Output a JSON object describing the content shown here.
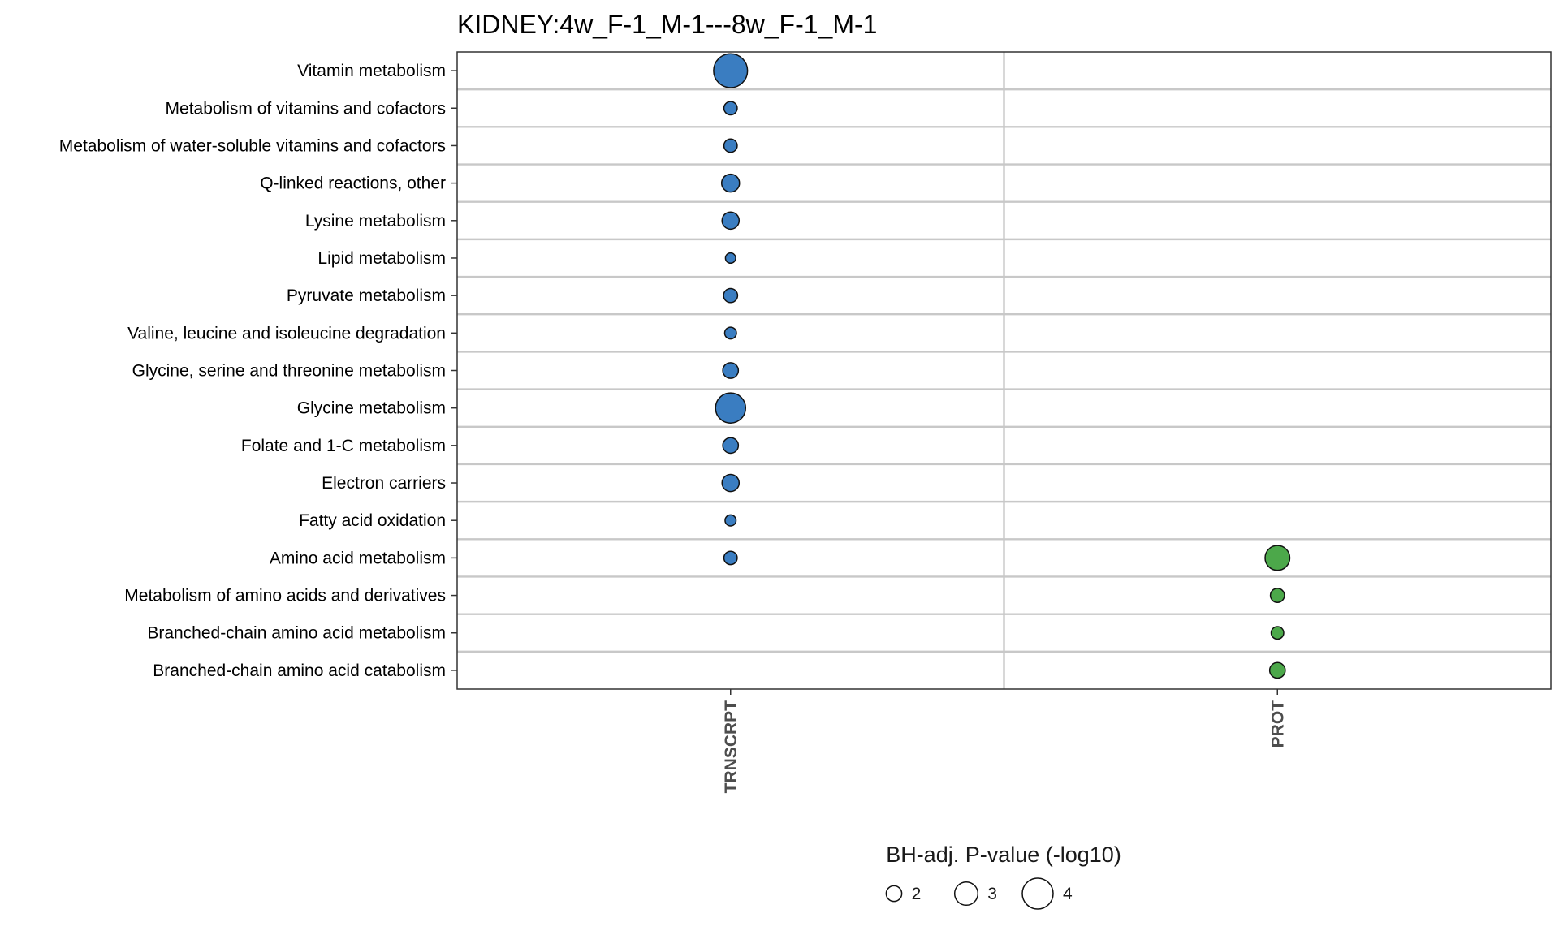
{
  "chart_data": {
    "type": "scatter",
    "title": "KIDNEY:4w_F-1_M-1---8w_F-1_M-1",
    "xlabel": "",
    "ylabel": "",
    "x_categories": [
      "TRNSCRPT",
      "PROT"
    ],
    "y_categories": [
      "Vitamin metabolism",
      "Metabolism of vitamins and cofactors",
      "Metabolism of water-soluble vitamins and cofactors",
      "Q-linked reactions, other",
      "Lysine metabolism",
      "Lipid metabolism",
      "Pyruvate metabolism",
      "Valine, leucine and isoleucine degradation",
      "Glycine, serine and threonine metabolism",
      "Glycine metabolism",
      "Folate and 1-C metabolism",
      "Electron carriers",
      "Fatty acid oxidation",
      "Amino acid metabolism",
      "Metabolism of amino acids and derivatives",
      "Branched-chain amino acid metabolism",
      "Branched-chain amino acid catabolism"
    ],
    "series": [
      {
        "x": "TRNSCRPT",
        "color": "#3a7dc1",
        "points": [
          {
            "y": "Vitamin metabolism",
            "value": 4.4
          },
          {
            "y": "Metabolism of vitamins and cofactors",
            "value": 1.7
          },
          {
            "y": "Metabolism of water-soluble vitamins and cofactors",
            "value": 1.7
          },
          {
            "y": "Q-linked reactions, other",
            "value": 2.3
          },
          {
            "y": "Lysine metabolism",
            "value": 2.2
          },
          {
            "y": "Lipid metabolism",
            "value": 1.3
          },
          {
            "y": "Pyruvate metabolism",
            "value": 1.8
          },
          {
            "y": "Valine, leucine and isoleucine degradation",
            "value": 1.5
          },
          {
            "y": "Glycine, serine and threonine metabolism",
            "value": 2.0
          },
          {
            "y": "Glycine metabolism",
            "value": 3.9
          },
          {
            "y": "Folate and 1-C metabolism",
            "value": 2.0
          },
          {
            "y": "Electron carriers",
            "value": 2.2
          },
          {
            "y": "Fatty acid oxidation",
            "value": 1.4
          },
          {
            "y": "Amino acid metabolism",
            "value": 1.7
          }
        ]
      },
      {
        "x": "PROT",
        "color": "#4ca84a",
        "points": [
          {
            "y": "Amino acid metabolism",
            "value": 3.2
          },
          {
            "y": "Metabolism of amino acids and derivatives",
            "value": 1.8
          },
          {
            "y": "Branched-chain amino acid metabolism",
            "value": 1.6
          },
          {
            "y": "Branched-chain amino acid catabolism",
            "value": 2.0
          }
        ]
      }
    ],
    "size_legend": {
      "title": "BH-adj. P-value (-log10)",
      "values": [
        2,
        3,
        4
      ],
      "labels": [
        "2",
        "3",
        "4"
      ]
    },
    "grid": true,
    "legend_position": "bottom"
  }
}
